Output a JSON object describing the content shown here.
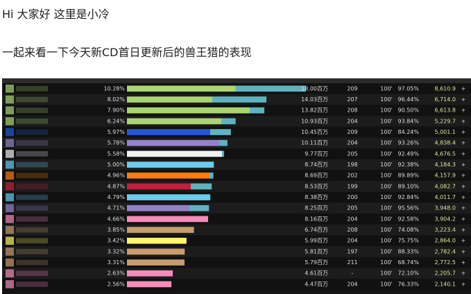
{
  "header": {
    "greeting": "Hi 大家好 这里是小冷",
    "intro": "一起来看一下今天新CD首日更新后的兽王猎的表现"
  },
  "table": {
    "pet_color": "#5fb3bf",
    "rows": [
      {
        "color": "#abd473",
        "percent": "10.28%",
        "primary": 10.95,
        "total": {
          "value": 18.0,
          "label": "18.00百万"
        },
        "count": "209",
        "ilvl": "100'",
        "parse": "97.05%",
        "dps": "8,610.9",
        "action": "+"
      },
      {
        "color": "#abd473",
        "percent": "8.02%",
        "primary": 8.58,
        "total": {
          "value": 14.03,
          "label": "14.03百万"
        },
        "count": "207",
        "ilvl": "100'",
        "parse": "96.44%",
        "dps": "6,714.0",
        "action": "+"
      },
      {
        "color": "#abd473",
        "percent": "7.90%",
        "primary": 12.35,
        "total": {
          "value": 13.82,
          "label": "13.82百万"
        },
        "count": "208",
        "ilvl": "100'",
        "parse": "90.50%",
        "dps": "6,613.8",
        "action": "+"
      },
      {
        "color": "#abd473",
        "percent": "6.24%",
        "primary": 9.49,
        "total": {
          "value": 10.93,
          "label": "10.93百万"
        },
        "count": "204",
        "ilvl": "100'",
        "parse": "93.84%",
        "dps": "5,229.7",
        "action": "+"
      },
      {
        "color": "#2459d6",
        "percent": "5.97%",
        "primary": 8.37,
        "total": {
          "value": 10.45,
          "label": "10.45百万"
        },
        "count": "209",
        "ilvl": "100'",
        "parse": "84.24%",
        "dps": "5,001.1",
        "action": "+"
      },
      {
        "color": "#9482c9",
        "percent": "5.78%",
        "primary": 9.28,
        "total": {
          "value": 10.11,
          "label": "10.11百万"
        },
        "count": "204",
        "ilvl": "100'",
        "parse": "93.26%",
        "dps": "4,838.4",
        "action": "+"
      },
      {
        "color": "#f0f0f0",
        "percent": "5.58%",
        "primary": 9.56,
        "total": {
          "value": 9.77,
          "label": "9.77百万"
        },
        "count": "205",
        "ilvl": "100'",
        "parse": "92.49%",
        "dps": "4,676.5",
        "action": "+"
      },
      {
        "color": "#69ccf0",
        "percent": "5.00%",
        "primary": 8.74,
        "total": {
          "value": 8.74,
          "label": "8.74百万"
        },
        "count": "198",
        "ilvl": "100'",
        "parse": "92.38%",
        "dps": "4,184.3",
        "action": "+"
      },
      {
        "color": "#ff7d0a",
        "percent": "4.96%",
        "primary": 8.3,
        "total": {
          "value": 8.69,
          "label": "8.69百万"
        },
        "count": "202",
        "ilvl": "100'",
        "parse": "89.89%",
        "dps": "4,157.9",
        "action": "+"
      },
      {
        "color": "#c41f3b",
        "percent": "4.87%",
        "primary": 6.42,
        "total": {
          "value": 8.53,
          "label": "8.53百万"
        },
        "count": "199",
        "ilvl": "100'",
        "parse": "89.10%",
        "dps": "4,082.7",
        "action": "+"
      },
      {
        "color": "#69ccf0",
        "percent": "4.79%",
        "primary": 8.38,
        "total": {
          "value": 8.38,
          "label": "8.38百万"
        },
        "count": "200",
        "ilvl": "100'",
        "parse": "92.84%",
        "dps": "4,011.7",
        "action": "+"
      },
      {
        "color": "#9482c9",
        "percent": "4.71%",
        "primary": 6.28,
        "total": {
          "value": 8.25,
          "label": "8.25百万"
        },
        "count": "205",
        "ilvl": "100'",
        "parse": "95.56%",
        "dps": "3,948.0",
        "action": "+"
      },
      {
        "color": "#f58cba",
        "percent": "4.66%",
        "primary": 8.16,
        "total": {
          "value": 8.16,
          "label": "8.16百万"
        },
        "count": "204",
        "ilvl": "100'",
        "parse": "92.58%",
        "dps": "3,904.2",
        "action": "+"
      },
      {
        "color": "#c79c6e",
        "percent": "3.85%",
        "primary": 6.74,
        "total": {
          "value": 6.74,
          "label": "6.74百万"
        },
        "count": "208",
        "ilvl": "100'",
        "parse": "74.08%",
        "dps": "3,223.4",
        "action": "+"
      },
      {
        "color": "#fff569",
        "percent": "3.42%",
        "primary": 5.99,
        "total": {
          "value": 5.99,
          "label": "5.99百万"
        },
        "count": "204",
        "ilvl": "100'",
        "parse": "75.75%",
        "dps": "2,864.0",
        "action": "+"
      },
      {
        "color": "#c79c6e",
        "percent": "3.32%",
        "primary": 5.81,
        "total": {
          "value": 5.81,
          "label": "5.81百万"
        },
        "count": "197",
        "ilvl": "100'",
        "parse": "88.33%",
        "dps": "2,782.4",
        "action": "+"
      },
      {
        "color": "#c79c6e",
        "percent": "3.31%",
        "primary": 5.79,
        "total": {
          "value": 5.79,
          "label": "5.79百万"
        },
        "count": "211",
        "ilvl": "100'",
        "parse": "68.74%",
        "dps": "2,772.5",
        "action": "+"
      },
      {
        "color": "#f58cba",
        "percent": "2.63%",
        "primary": 4.61,
        "total": {
          "value": 4.61,
          "label": "4.61百万"
        },
        "count": "-",
        "ilvl": "100'",
        "parse": "72.10%",
        "dps": "2,205.7",
        "action": "+"
      },
      {
        "color": "#f58cba",
        "percent": "2.56%",
        "primary": 4.47,
        "total": {
          "value": 4.47,
          "label": "4.47百万"
        },
        "count": "204",
        "ilvl": "100'",
        "parse": "76.33%",
        "dps": "2,140.1",
        "action": "+"
      }
    ]
  }
}
